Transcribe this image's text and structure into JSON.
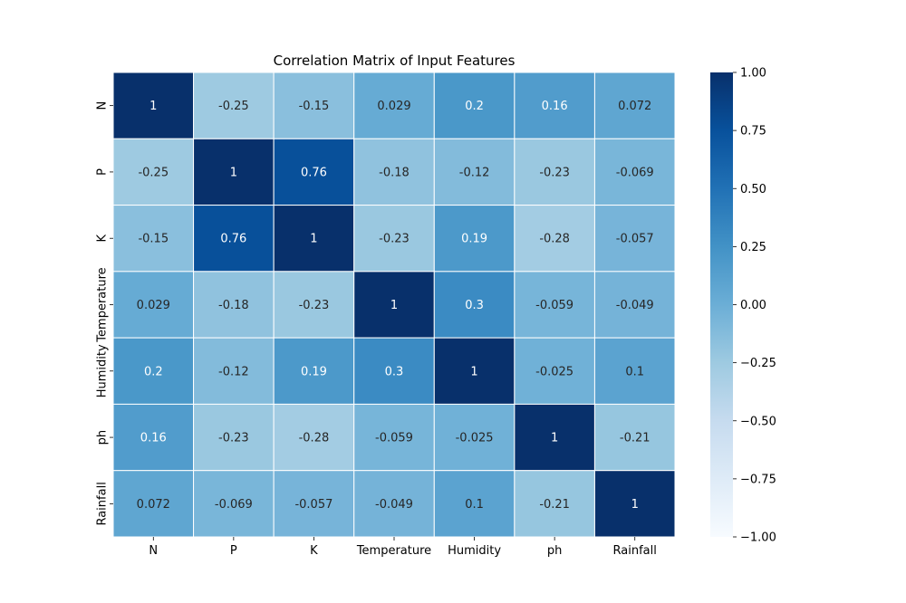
{
  "chart_data": {
    "type": "heatmap",
    "title": "Correlation Matrix of Input Features",
    "row_labels": [
      "N",
      "P",
      "K",
      "Temperature",
      "Humidity",
      "ph",
      "Rainfall"
    ],
    "col_labels": [
      "N",
      "P",
      "K",
      "Temperature",
      "Humidity",
      "ph",
      "Rainfall"
    ],
    "values": [
      [
        1,
        -0.25,
        -0.15,
        0.029,
        0.2,
        0.16,
        0.072
      ],
      [
        -0.25,
        1,
        0.76,
        -0.18,
        -0.12,
        -0.23,
        -0.069
      ],
      [
        -0.15,
        0.76,
        1,
        -0.23,
        0.19,
        -0.28,
        -0.057
      ],
      [
        0.029,
        -0.18,
        -0.23,
        1,
        0.3,
        -0.059,
        -0.049
      ],
      [
        0.2,
        -0.12,
        0.19,
        0.3,
        1,
        -0.025,
        0.1
      ],
      [
        0.16,
        -0.23,
        -0.28,
        -0.059,
        -0.025,
        1,
        -0.21
      ],
      [
        0.072,
        -0.069,
        -0.057,
        -0.049,
        0.1,
        -0.21,
        1
      ]
    ],
    "value_labels": [
      [
        "1",
        "-0.25",
        "-0.15",
        "0.029",
        "0.2",
        "0.16",
        "0.072"
      ],
      [
        "-0.25",
        "1",
        "0.76",
        "-0.18",
        "-0.12",
        "-0.23",
        "-0.069"
      ],
      [
        "-0.15",
        "0.76",
        "1",
        "-0.23",
        "0.19",
        "-0.28",
        "-0.057"
      ],
      [
        "0.029",
        "-0.18",
        "-0.23",
        "1",
        "0.3",
        "-0.059",
        "-0.049"
      ],
      [
        "0.2",
        "-0.12",
        "0.19",
        "0.3",
        "1",
        "-0.025",
        "0.1"
      ],
      [
        "0.16",
        "-0.23",
        "-0.28",
        "-0.059",
        "-0.025",
        "1",
        "-0.21"
      ],
      [
        "0.072",
        "-0.069",
        "-0.057",
        "-0.049",
        "0.1",
        "-0.21",
        "1"
      ]
    ],
    "colorbar": {
      "range": [
        -1,
        1
      ],
      "ticks": [
        1,
        0.75,
        0.5,
        0.25,
        0,
        -0.25,
        -0.5,
        -0.75,
        -1
      ],
      "tick_labels": [
        "1.00",
        "0.75",
        "0.50",
        "0.25",
        "0.00",
        "−0.25",
        "−0.50",
        "−0.75",
        "−1.00"
      ]
    },
    "colormap": "Blues",
    "annotated": true
  }
}
